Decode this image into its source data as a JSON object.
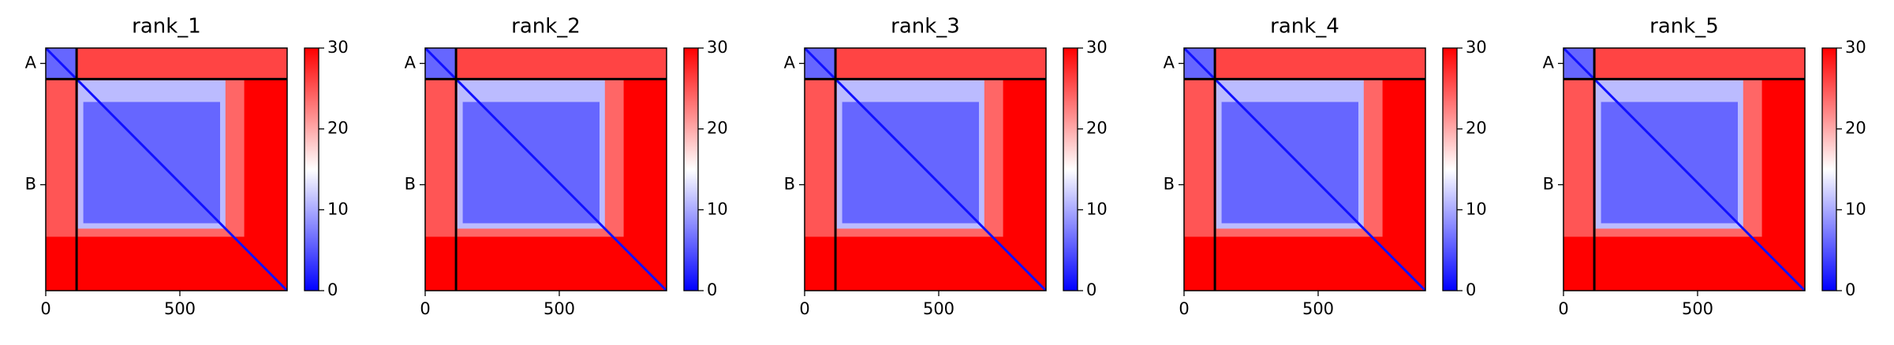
{
  "chart_data": [
    {
      "type": "heatmap",
      "title": "rank_1",
      "xlim": [
        0,
        900
      ],
      "xticks": [
        0,
        500
      ],
      "ylim": [
        900,
        0
      ],
      "yticks": [
        {
          "value": 57,
          "label": "A"
        },
        {
          "value": 507,
          "label": "B"
        }
      ],
      "chain_boundaries": [
        115
      ],
      "colormap": [
        "#0000ff",
        "#ffffff",
        "#ff0000"
      ],
      "clim": [
        0,
        30
      ],
      "cticks": [
        0,
        10,
        20,
        30
      ],
      "background": 30,
      "diagonal": 1,
      "blocks": [
        {
          "x": [
            115,
            900
          ],
          "y": [
            0,
            115
          ],
          "value": 26
        },
        {
          "x": [
            0,
            115
          ],
          "y": [
            115,
            700
          ],
          "value": 25
        },
        {
          "x": [
            115,
            740
          ],
          "y": [
            115,
            700
          ],
          "value": 24
        },
        {
          "x": [
            0,
            115
          ],
          "y": [
            0,
            115
          ],
          "value": 6
        },
        {
          "x": [
            120,
            670
          ],
          "y": [
            120,
            670
          ],
          "value": 11
        },
        {
          "x": [
            140,
            650
          ],
          "y": [
            200,
            650
          ],
          "value": 6
        }
      ]
    },
    {
      "type": "heatmap",
      "title": "rank_2",
      "xlim": [
        0,
        900
      ],
      "xticks": [
        0,
        500
      ],
      "ylim": [
        900,
        0
      ],
      "yticks": [
        {
          "value": 57,
          "label": "A"
        },
        {
          "value": 507,
          "label": "B"
        }
      ],
      "chain_boundaries": [
        115
      ],
      "colormap": [
        "#0000ff",
        "#ffffff",
        "#ff0000"
      ],
      "clim": [
        0,
        30
      ],
      "cticks": [
        0,
        10,
        20,
        30
      ],
      "background": 30,
      "diagonal": 1,
      "blocks": [
        {
          "x": [
            115,
            900
          ],
          "y": [
            0,
            115
          ],
          "value": 26
        },
        {
          "x": [
            0,
            115
          ],
          "y": [
            115,
            700
          ],
          "value": 25
        },
        {
          "x": [
            115,
            740
          ],
          "y": [
            115,
            700
          ],
          "value": 24
        },
        {
          "x": [
            0,
            115
          ],
          "y": [
            0,
            115
          ],
          "value": 6
        },
        {
          "x": [
            120,
            670
          ],
          "y": [
            120,
            670
          ],
          "value": 11
        },
        {
          "x": [
            140,
            650
          ],
          "y": [
            200,
            650
          ],
          "value": 6
        }
      ]
    },
    {
      "type": "heatmap",
      "title": "rank_3",
      "xlim": [
        0,
        900
      ],
      "xticks": [
        0,
        500
      ],
      "ylim": [
        900,
        0
      ],
      "yticks": [
        {
          "value": 57,
          "label": "A"
        },
        {
          "value": 507,
          "label": "B"
        }
      ],
      "chain_boundaries": [
        115
      ],
      "colormap": [
        "#0000ff",
        "#ffffff",
        "#ff0000"
      ],
      "clim": [
        0,
        30
      ],
      "cticks": [
        0,
        10,
        20,
        30
      ],
      "background": 30,
      "diagonal": 1,
      "blocks": [
        {
          "x": [
            115,
            900
          ],
          "y": [
            0,
            115
          ],
          "value": 26
        },
        {
          "x": [
            0,
            115
          ],
          "y": [
            115,
            700
          ],
          "value": 25
        },
        {
          "x": [
            115,
            740
          ],
          "y": [
            115,
            700
          ],
          "value": 24
        },
        {
          "x": [
            0,
            115
          ],
          "y": [
            0,
            115
          ],
          "value": 6
        },
        {
          "x": [
            120,
            670
          ],
          "y": [
            120,
            670
          ],
          "value": 11
        },
        {
          "x": [
            140,
            650
          ],
          "y": [
            200,
            650
          ],
          "value": 6
        }
      ]
    },
    {
      "type": "heatmap",
      "title": "rank_4",
      "xlim": [
        0,
        900
      ],
      "xticks": [
        0,
        500
      ],
      "ylim": [
        900,
        0
      ],
      "yticks": [
        {
          "value": 57,
          "label": "A"
        },
        {
          "value": 507,
          "label": "B"
        }
      ],
      "chain_boundaries": [
        115
      ],
      "colormap": [
        "#0000ff",
        "#ffffff",
        "#ff0000"
      ],
      "clim": [
        0,
        30
      ],
      "cticks": [
        0,
        10,
        20,
        30
      ],
      "background": 30,
      "diagonal": 1,
      "blocks": [
        {
          "x": [
            115,
            900
          ],
          "y": [
            0,
            115
          ],
          "value": 26
        },
        {
          "x": [
            0,
            115
          ],
          "y": [
            115,
            700
          ],
          "value": 25
        },
        {
          "x": [
            115,
            740
          ],
          "y": [
            115,
            700
          ],
          "value": 24
        },
        {
          "x": [
            0,
            115
          ],
          "y": [
            0,
            115
          ],
          "value": 6
        },
        {
          "x": [
            120,
            670
          ],
          "y": [
            120,
            670
          ],
          "value": 11
        },
        {
          "x": [
            140,
            650
          ],
          "y": [
            200,
            650
          ],
          "value": 6
        }
      ]
    },
    {
      "type": "heatmap",
      "title": "rank_5",
      "xlim": [
        0,
        900
      ],
      "xticks": [
        0,
        500
      ],
      "ylim": [
        900,
        0
      ],
      "yticks": [
        {
          "value": 57,
          "label": "A"
        },
        {
          "value": 507,
          "label": "B"
        }
      ],
      "chain_boundaries": [
        115
      ],
      "colormap": [
        "#0000ff",
        "#ffffff",
        "#ff0000"
      ],
      "clim": [
        0,
        30
      ],
      "cticks": [
        0,
        10,
        20,
        30
      ],
      "background": 30,
      "diagonal": 1,
      "blocks": [
        {
          "x": [
            115,
            900
          ],
          "y": [
            0,
            115
          ],
          "value": 26
        },
        {
          "x": [
            0,
            115
          ],
          "y": [
            115,
            700
          ],
          "value": 25
        },
        {
          "x": [
            115,
            740
          ],
          "y": [
            115,
            700
          ],
          "value": 24
        },
        {
          "x": [
            0,
            115
          ],
          "y": [
            0,
            115
          ],
          "value": 6
        },
        {
          "x": [
            120,
            670
          ],
          "y": [
            120,
            670
          ],
          "value": 11
        },
        {
          "x": [
            140,
            650
          ],
          "y": [
            200,
            650
          ],
          "value": 6
        }
      ]
    }
  ]
}
